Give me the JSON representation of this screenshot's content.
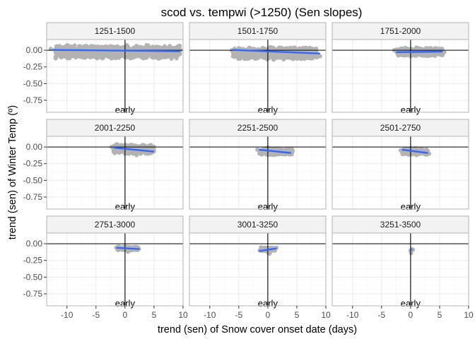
{
  "chart_data": {
    "type": "scatter",
    "title": "scod vs. tempwi (>1250) (Sen slopes)",
    "xlabel": "trend (sen) of Snow cover onset date (days)",
    "ylabel": "trend (sen) of Winter Temp (º)",
    "xlim": [
      -13.5,
      10
    ],
    "ylim": [
      -0.93,
      0.16
    ],
    "x_ticks": [
      -10,
      -5,
      0,
      5,
      10
    ],
    "x_tick_labels": [
      "-10",
      "-5",
      "0",
      "5",
      "10"
    ],
    "y_ticks": [
      0.0,
      -0.25,
      -0.5,
      -0.75
    ],
    "y_tick_labels": [
      "0.00",
      "-0.25",
      "-0.50",
      "-0.75"
    ],
    "reference_lines": {
      "x": 0,
      "y": 0
    },
    "annotation": {
      "text": "early",
      "x": 0,
      "y": -0.93
    },
    "colors": {
      "points": "#b3b3b3",
      "fit_line": "#3366ff",
      "strip_bg": "#f2f2f2",
      "panel_border": "#b3b3b3",
      "grid": "#ebebeb"
    },
    "facets": [
      {
        "label": "1251-1500",
        "fit": {
          "x": [
            -12.5,
            9.5
          ],
          "y": [
            0.005,
            -0.015
          ]
        },
        "cloud": {
          "x": [
            -12,
            9.5
          ],
          "y": [
            -0.13,
            0.08
          ]
        },
        "points": [
          [
            -12.8,
            0.02
          ],
          [
            -11,
            -0.01
          ],
          [
            -9.5,
            0.01
          ],
          [
            -7,
            0.02
          ],
          [
            -6.5,
            0.0
          ],
          [
            -5,
            -0.02
          ],
          [
            -4.5,
            0.03
          ],
          [
            -3,
            -0.04
          ],
          [
            -2,
            0.05
          ],
          [
            -1,
            -0.09
          ],
          [
            1,
            -0.12
          ],
          [
            2,
            0.06
          ],
          [
            3,
            -0.1
          ],
          [
            4,
            0.07
          ],
          [
            5,
            -0.06
          ],
          [
            6,
            0.04
          ],
          [
            7,
            -0.05
          ],
          [
            8,
            0.02
          ],
          [
            9,
            0.0
          ],
          [
            -8,
            -0.03
          ]
        ]
      },
      {
        "label": "1501-1750",
        "fit": {
          "x": [
            -6,
            9
          ],
          "y": [
            0.005,
            -0.05
          ]
        },
        "cloud": {
          "x": [
            -6,
            8.5
          ],
          "y": [
            -0.14,
            0.05
          ]
        },
        "points": [
          [
            -6.2,
            0.0
          ],
          [
            -5,
            -0.02
          ],
          [
            -4,
            -0.04
          ],
          [
            -3,
            0.02
          ],
          [
            -2,
            -0.08
          ],
          [
            0,
            -0.12
          ],
          [
            1,
            -0.14
          ],
          [
            2,
            0.04
          ],
          [
            3,
            -0.1
          ],
          [
            5,
            -0.06
          ],
          [
            6,
            -0.08
          ],
          [
            7,
            -0.03
          ],
          [
            8,
            -0.05
          ],
          [
            9,
            -0.09
          ]
        ]
      },
      {
        "label": "1751-2000",
        "fit": {
          "x": [
            -2.5,
            5.5
          ],
          "y": [
            -0.03,
            -0.02
          ]
        },
        "cloud": {
          "x": [
            -2.5,
            5.5
          ],
          "y": [
            -0.09,
            0.04
          ]
        },
        "points": [
          [
            -2.8,
            0.0
          ],
          [
            -2,
            -0.06
          ],
          [
            -1,
            0.03
          ],
          [
            0,
            -0.09
          ],
          [
            1,
            0.04
          ],
          [
            2,
            -0.08
          ],
          [
            3,
            0.03
          ],
          [
            4,
            -0.07
          ],
          [
            5,
            0.02
          ],
          [
            5.8,
            -0.03
          ]
        ]
      },
      {
        "label": "2001-2250",
        "fit": {
          "x": [
            -2,
            5
          ],
          "y": [
            -0.01,
            -0.07
          ]
        },
        "cloud": {
          "x": [
            -2,
            5
          ],
          "y": [
            -0.11,
            0.04
          ]
        },
        "points": [
          [
            -2.3,
            0.0
          ],
          [
            -1.5,
            0.04
          ],
          [
            -1,
            -0.05
          ],
          [
            0,
            -0.1
          ],
          [
            1,
            0.02
          ],
          [
            2,
            -0.12
          ],
          [
            3,
            -0.02
          ],
          [
            4,
            -0.1
          ],
          [
            5,
            -0.06
          ]
        ]
      },
      {
        "label": "2251-2500",
        "fit": {
          "x": [
            -1.5,
            4
          ],
          "y": [
            -0.04,
            -0.09
          ]
        },
        "cloud": {
          "x": [
            -1.5,
            4.2
          ],
          "y": [
            -0.12,
            -0.02
          ]
        },
        "points": [
          [
            -1.8,
            -0.04
          ],
          [
            -1,
            -0.1
          ],
          [
            0,
            -0.01
          ],
          [
            1,
            -0.12
          ],
          [
            2,
            -0.03
          ],
          [
            3,
            -0.11
          ],
          [
            4.3,
            -0.06
          ]
        ]
      },
      {
        "label": "2501-2750",
        "fit": {
          "x": [
            -1.5,
            3
          ],
          "y": [
            -0.04,
            -0.09
          ]
        },
        "cloud": {
          "x": [
            -1.5,
            3
          ],
          "y": [
            -0.12,
            -0.02
          ]
        },
        "points": [
          [
            -1.7,
            -0.05
          ],
          [
            -1,
            -0.1
          ],
          [
            0,
            -0.02
          ],
          [
            1,
            -0.12
          ],
          [
            2,
            -0.06
          ],
          [
            3.2,
            -0.1
          ]
        ]
      },
      {
        "label": "2751-3000",
        "fit": {
          "x": [
            -1.5,
            2.5
          ],
          "y": [
            -0.06,
            -0.08
          ]
        },
        "cloud": {
          "x": [
            -1.3,
            2.3
          ],
          "y": [
            -0.1,
            -0.04
          ]
        },
        "points": [
          [
            -1.5,
            -0.06
          ],
          [
            0,
            -0.04
          ],
          [
            0.5,
            -0.12
          ],
          [
            1,
            -0.1
          ],
          [
            2.4,
            -0.08
          ],
          [
            1.5,
            -0.05
          ]
        ]
      },
      {
        "label": "3001-3250",
        "fit": {
          "x": [
            -1.5,
            1.5
          ],
          "y": [
            -0.11,
            -0.07
          ]
        },
        "cloud": {
          "x": [
            -1.2,
            1.3
          ],
          "y": [
            -0.11,
            -0.05
          ]
        },
        "points": [
          [
            -1.4,
            -0.1
          ],
          [
            -0.5,
            -0.06
          ],
          [
            0,
            -0.13
          ],
          [
            0.3,
            -0.15
          ],
          [
            1,
            -0.07
          ],
          [
            1.5,
            -0.06
          ]
        ]
      },
      {
        "label": "3251-3500",
        "fit": {
          "x": [
            0,
            0.3
          ],
          "y": [
            -0.08,
            -0.09
          ]
        },
        "cloud": {
          "x": [
            0,
            0
          ],
          "y": [
            0,
            0
          ]
        },
        "points": [
          [
            0,
            -0.1
          ],
          [
            0.2,
            -0.08
          ],
          [
            0.4,
            -0.09
          ],
          [
            0.1,
            -0.14
          ]
        ]
      }
    ]
  }
}
